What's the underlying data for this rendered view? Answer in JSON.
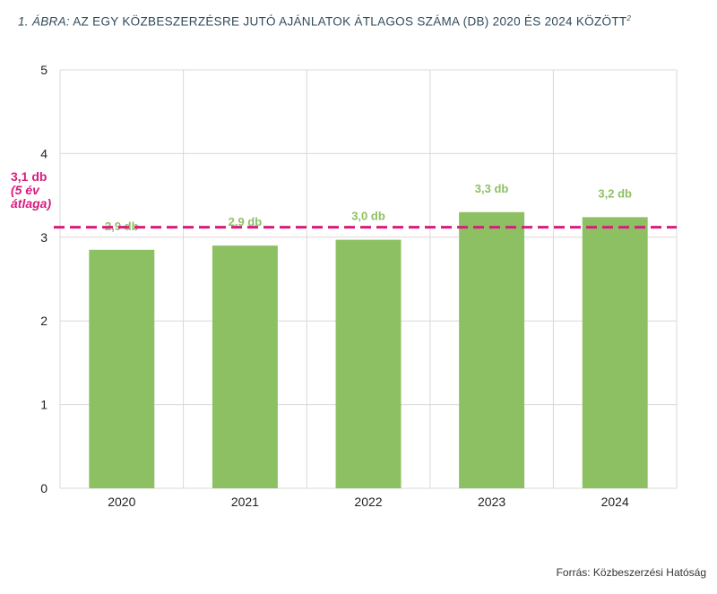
{
  "title": {
    "prefix": "1. ÁBRA:",
    "text": "AZ EGY KÖZBESZERZÉSRE JUTÓ AJÁNLATOK ÁTLAGOS SZÁMA (DB) 2020 ÉS 2024 KÖZÖTT",
    "footnote": "2"
  },
  "source": "Forrás: Közbeszerzési Hatóság",
  "chart_data": {
    "type": "bar",
    "categories": [
      "2020",
      "2021",
      "2022",
      "2023",
      "2024"
    ],
    "values": [
      2.85,
      2.9,
      2.97,
      3.3,
      3.24
    ],
    "data_labels": [
      "2,9 db",
      "2,9 db",
      "3,0 db",
      "3,3 db",
      "3,2 db"
    ],
    "ylim": [
      0,
      5
    ],
    "yticks": [
      0,
      1,
      2,
      3,
      4,
      5
    ],
    "grid": true,
    "bar_color": "#8dc063",
    "label_color": "#8dc063",
    "reference_line": {
      "value": 3.12,
      "color": "#d81b7f",
      "style": "dashed",
      "label_lines": [
        "3,1 db",
        "(5 év",
        "átlaga)"
      ]
    }
  }
}
